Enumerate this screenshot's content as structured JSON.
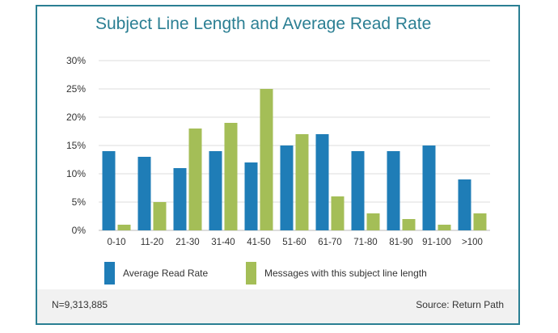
{
  "chart_data": {
    "type": "bar",
    "title": "Subject Line Length and Average Read Rate",
    "categories": [
      "0-10",
      "11-20",
      "21-30",
      "31-40",
      "41-50",
      "51-60",
      "61-70",
      "71-80",
      "81-90",
      "91-100",
      ">100"
    ],
    "series": [
      {
        "name": "Average Read Rate",
        "color": "#1f7db7",
        "values": [
          14,
          13,
          11,
          14,
          12,
          15,
          17,
          14,
          14,
          15,
          9
        ]
      },
      {
        "name": "Messages with this subject line length",
        "color": "#a4be57",
        "values": [
          1,
          5,
          18,
          19,
          25,
          17,
          6,
          3,
          2,
          1,
          3
        ]
      }
    ],
    "ylim": [
      0,
      30
    ],
    "yticks": [
      "0%",
      "5%",
      "10%",
      "15%",
      "20%",
      "25%",
      "30%"
    ],
    "grid": true,
    "legend_position": "bottom"
  },
  "footer": {
    "sample_size": "N=9,313,885",
    "source": "Source: Return Path"
  }
}
